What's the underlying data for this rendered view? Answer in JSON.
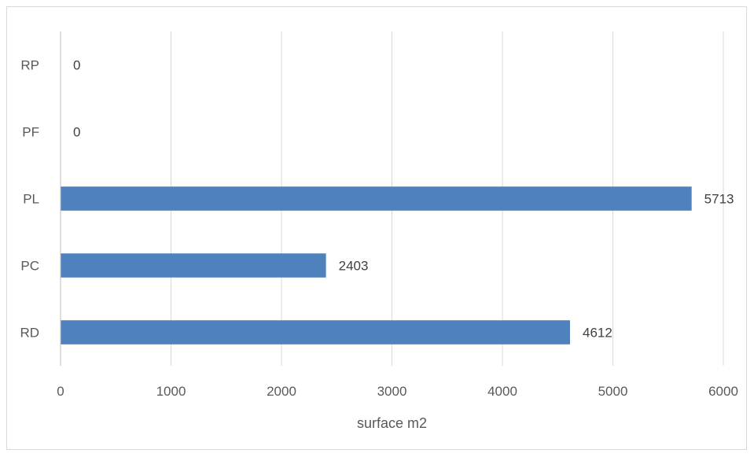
{
  "chart_data": {
    "type": "bar",
    "orientation": "horizontal",
    "categories": [
      "RD",
      "PC",
      "PL",
      "PF",
      "RP"
    ],
    "values": [
      4612,
      2403,
      5713,
      0,
      0
    ],
    "data_labels": [
      "4612",
      "2403",
      "5713",
      "0",
      "0"
    ],
    "title": "",
    "xlabel": "surface m2",
    "ylabel": "",
    "xlim": [
      0,
      6000
    ],
    "x_ticks": [
      0,
      1000,
      2000,
      3000,
      4000,
      5000,
      6000
    ],
    "x_tick_labels": [
      "0",
      "1000",
      "2000",
      "3000",
      "4000",
      "5000",
      "6000"
    ],
    "grid": "vertical",
    "legend": "none",
    "bar_color": "#4f81bd",
    "grid_color": "#d9d9d9",
    "axis_color": "#bfbfbf"
  }
}
